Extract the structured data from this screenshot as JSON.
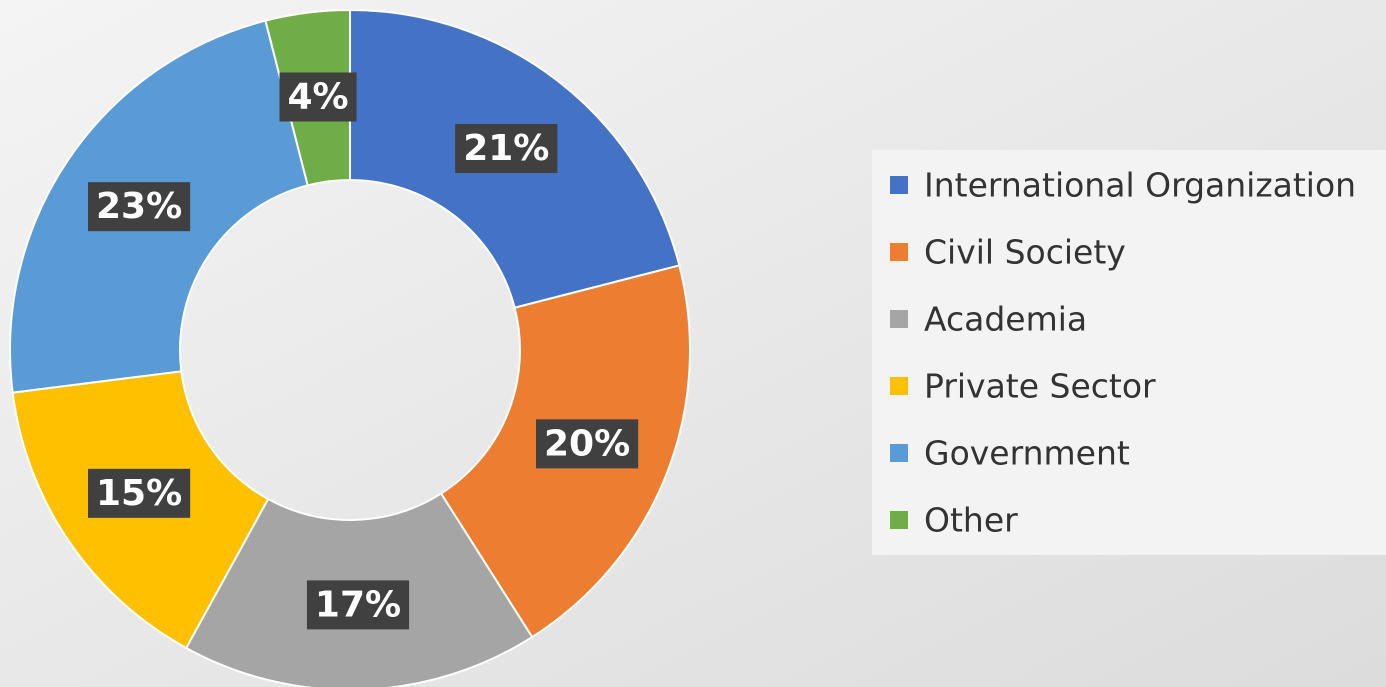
{
  "chart_data": {
    "type": "donut",
    "categories": [
      "International Organization",
      "Civil Society",
      "Academia",
      "Private Sector",
      "Government",
      "Other"
    ],
    "values": [
      21,
      20,
      17,
      15,
      23,
      4
    ],
    "value_labels": [
      "21%",
      "20%",
      "17%",
      "15%",
      "23%",
      "4%"
    ],
    "colors": [
      "#4472c4",
      "#ed7d31",
      "#a5a5a5",
      "#ffc000",
      "#5b9bd5",
      "#70ad47"
    ],
    "legend": "right"
  }
}
